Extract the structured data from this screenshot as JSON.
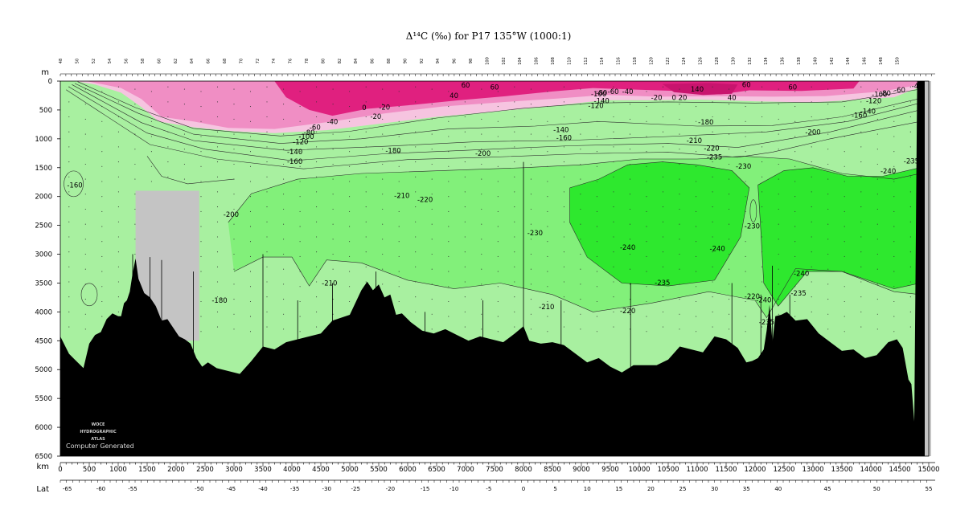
{
  "title": "Δ¹⁴C (‰) for P17 135°W (1000:1)",
  "chart_data": {
    "type": "heatmap",
    "title": "Δ¹⁴C (‰) for P17 135°W (1000:1)",
    "depth_axis": {
      "label": "m",
      "range": [
        0,
        6500
      ],
      "ticks": [
        "0",
        "500",
        "1000",
        "1500",
        "2000",
        "2500",
        "3000",
        "3500",
        "4000",
        "4500",
        "5000",
        "5500",
        "6000",
        "6500"
      ]
    },
    "distance_axis": {
      "label": "km",
      "range": [
        0,
        15000
      ],
      "ticks": [
        "0",
        "500",
        "1000",
        "1500",
        "2000",
        "2500",
        "3000",
        "3500",
        "4000",
        "4500",
        "5000",
        "5500",
        "6000",
        "6500",
        "7000",
        "7500",
        "8000",
        "8500",
        "9000",
        "9500",
        "10000",
        "10500",
        "11000",
        "11500",
        "12000",
        "12500",
        "13000",
        "13500",
        "14000",
        "14500",
        "15000"
      ]
    },
    "latitude_axis": {
      "label": "Lat",
      "ticks": [
        {
          "km": 120,
          "label": "-65"
        },
        {
          "km": 700,
          "label": "-60"
        },
        {
          "km": 1250,
          "label": "-55"
        },
        {
          "km": 2400,
          "label": "-50"
        },
        {
          "km": 2950,
          "label": "-45"
        },
        {
          "km": 3500,
          "label": "-40"
        },
        {
          "km": 4050,
          "label": "-35"
        },
        {
          "km": 4600,
          "label": "-30"
        },
        {
          "km": 5100,
          "label": "-25"
        },
        {
          "km": 5700,
          "label": "-20"
        },
        {
          "km": 6300,
          "label": "-15"
        },
        {
          "km": 6800,
          "label": "-10"
        },
        {
          "km": 7400,
          "label": "-5"
        },
        {
          "km": 8000,
          "label": "0"
        },
        {
          "km": 8550,
          "label": "5"
        },
        {
          "km": 9100,
          "label": "10"
        },
        {
          "km": 9650,
          "label": "15"
        },
        {
          "km": 10200,
          "label": "20"
        },
        {
          "km": 10750,
          "label": "25"
        },
        {
          "km": 11300,
          "label": "30"
        },
        {
          "km": 11850,
          "label": "35"
        },
        {
          "km": 12400,
          "label": "40"
        },
        {
          "km": 13250,
          "label": "45"
        },
        {
          "km": 14100,
          "label": "50"
        },
        {
          "km": 15000,
          "label": "55"
        }
      ]
    },
    "fill_levels": [
      {
        "min": 0,
        "color": "#e0207f"
      },
      {
        "min": -40,
        "color": "#f08ec4"
      },
      {
        "min": -120,
        "color": "#f6c4e0"
      },
      {
        "min": -180,
        "color": "#a8f0a0"
      },
      {
        "min": -220,
        "color": "#82f07a"
      },
      {
        "min": -235,
        "color": "#2ee82e"
      }
    ],
    "contour_labels": [
      {
        "km": 7000,
        "depth": 100,
        "value": "60"
      },
      {
        "km": 7500,
        "depth": 130,
        "value": "60"
      },
      {
        "km": 6800,
        "depth": 280,
        "value": "40"
      },
      {
        "km": 5250,
        "depth": 490,
        "value": "0"
      },
      {
        "km": 5600,
        "depth": 480,
        "value": "-20"
      },
      {
        "km": 5450,
        "depth": 640,
        "value": "-20"
      },
      {
        "km": 4700,
        "depth": 730,
        "value": "-40"
      },
      {
        "km": 4400,
        "depth": 830,
        "value": "-60"
      },
      {
        "km": 4300,
        "depth": 920,
        "value": "-80"
      },
      {
        "km": 4250,
        "depth": 990,
        "value": "-100"
      },
      {
        "km": 4150,
        "depth": 1080,
        "value": "-120"
      },
      {
        "km": 4050,
        "depth": 1250,
        "value": "-140"
      },
      {
        "km": 4050,
        "depth": 1420,
        "value": "-160"
      },
      {
        "km": 5750,
        "depth": 1230,
        "value": "-180"
      },
      {
        "km": 7300,
        "depth": 1280,
        "value": "-200"
      },
      {
        "km": 8700,
        "depth": 1010,
        "value": "-160"
      },
      {
        "km": 8650,
        "depth": 870,
        "value": "-140"
      },
      {
        "km": 9250,
        "depth": 450,
        "value": "-120"
      },
      {
        "km": 9350,
        "depth": 370,
        "value": "-140"
      },
      {
        "km": 9300,
        "depth": 250,
        "value": "-100"
      },
      {
        "km": 9350,
        "depth": 230,
        "value": "-80"
      },
      {
        "km": 9550,
        "depth": 210,
        "value": "-60"
      },
      {
        "km": 9800,
        "depth": 210,
        "value": "-40"
      },
      {
        "km": 10300,
        "depth": 310,
        "value": "-20"
      },
      {
        "km": 10600,
        "depth": 310,
        "value": "0"
      },
      {
        "km": 10750,
        "depth": 310,
        "value": "20"
      },
      {
        "km": 11000,
        "depth": 170,
        "value": "140"
      },
      {
        "km": 11600,
        "depth": 310,
        "value": "40"
      },
      {
        "km": 11850,
        "depth": 90,
        "value": "60"
      },
      {
        "km": 12650,
        "depth": 130,
        "value": "60"
      },
      {
        "km": 11150,
        "depth": 740,
        "value": "-180"
      },
      {
        "km": 10950,
        "depth": 1060,
        "value": "-210"
      },
      {
        "km": 11250,
        "depth": 1190,
        "value": "-220"
      },
      {
        "km": 11300,
        "depth": 1340,
        "value": "-235"
      },
      {
        "km": 11800,
        "depth": 1500,
        "value": "-230"
      },
      {
        "km": 13000,
        "depth": 910,
        "value": "-200"
      },
      {
        "km": 13950,
        "depth": 550,
        "value": "-140"
      },
      {
        "km": 13800,
        "depth": 620,
        "value": "-160"
      },
      {
        "km": 14050,
        "depth": 370,
        "value": "-120"
      },
      {
        "km": 14150,
        "depth": 260,
        "value": "-100"
      },
      {
        "km": 14250,
        "depth": 240,
        "value": "-80"
      },
      {
        "km": 14500,
        "depth": 180,
        "value": "-60"
      },
      {
        "km": 14800,
        "depth": 110,
        "value": "-40"
      },
      {
        "km": 14700,
        "depth": 1410,
        "value": "-235"
      },
      {
        "km": 14300,
        "depth": 1590,
        "value": "-240"
      },
      {
        "km": 250,
        "depth": 1830,
        "value": "-160"
      },
      {
        "km": 5900,
        "depth": 2010,
        "value": "-210"
      },
      {
        "km": 6300,
        "depth": 2080,
        "value": "-220"
      },
      {
        "km": 2950,
        "depth": 2340,
        "value": "-200"
      },
      {
        "km": 8200,
        "depth": 2660,
        "value": "-230"
      },
      {
        "km": 9800,
        "depth": 2910,
        "value": "-240"
      },
      {
        "km": 11350,
        "depth": 2930,
        "value": "-240"
      },
      {
        "km": 11950,
        "depth": 2540,
        "value": "-230"
      },
      {
        "km": 10400,
        "depth": 3520,
        "value": "-235"
      },
      {
        "km": 4650,
        "depth": 3530,
        "value": "-210"
      },
      {
        "km": 2750,
        "depth": 3830,
        "value": "-180"
      },
      {
        "km": 8400,
        "depth": 3940,
        "value": "-210"
      },
      {
        "km": 9800,
        "depth": 4010,
        "value": "-220"
      },
      {
        "km": 11950,
        "depth": 3760,
        "value": "-220"
      },
      {
        "km": 12150,
        "depth": 3820,
        "value": "-240"
      },
      {
        "km": 12800,
        "depth": 3360,
        "value": "-240"
      },
      {
        "km": 12750,
        "depth": 3700,
        "value": "-235"
      },
      {
        "km": 12200,
        "depth": 4200,
        "value": "-235"
      }
    ],
    "bottom_profile_km": [
      0,
      150,
      250,
      400,
      500,
      600,
      700,
      800,
      900,
      1000,
      1050,
      1100,
      1150,
      1200,
      1250,
      1300,
      1350,
      1450,
      1550,
      1650,
      1750,
      1850,
      1950,
      2050,
      2150,
      2250,
      2350,
      2450,
      2550,
      2700,
      2900,
      3100,
      3300,
      3500,
      3700,
      3900,
      4100,
      4300,
      4500,
      4700,
      4850,
      5000,
      5200,
      5300,
      5400,
      5500,
      5600,
      5700,
      5800,
      5900,
      6050,
      6250,
      6450,
      6650,
      6850,
      7050,
      7250,
      7450,
      7650,
      7850,
      8000,
      8100,
      8300,
      8500,
      8700,
      8900,
      9100,
      9300,
      9500,
      9700,
      9900,
      10100,
      10300,
      10500,
      10700,
      10900,
      11100,
      11300,
      11500,
      11700,
      11850,
      11950,
      12050,
      12150,
      12200,
      12250,
      12300,
      12350,
      12450,
      12550,
      12700,
      12900,
      13100,
      13300,
      13500,
      13700,
      13900,
      14100,
      14300,
      14450,
      14550,
      14650,
      14700,
      14750,
      14800,
      15000
    ],
    "bottom_profile_depth": [
      4500,
      4750,
      4800,
      4900,
      4600,
      4400,
      4300,
      4200,
      4050,
      4050,
      4000,
      3900,
      3800,
      3600,
      3400,
      3100,
      3400,
      3600,
      3800,
      3900,
      4100,
      4200,
      4300,
      4400,
      4400,
      4600,
      4800,
      4900,
      4950,
      5000,
      5000,
      5000,
      4900,
      4600,
      4600,
      4600,
      4500,
      4400,
      4300,
      4200,
      4100,
      4000,
      3700,
      3500,
      3600,
      3450,
      3800,
      3700,
      4000,
      4100,
      4200,
      4300,
      4300,
      4350,
      4400,
      4450,
      4500,
      4500,
      4500,
      4300,
      4300,
      4500,
      4500,
      4600,
      4600,
      4700,
      4800,
      4850,
      4950,
      5000,
      5000,
      4950,
      4900,
      4750,
      4650,
      4650,
      4650,
      4500,
      4500,
      4600,
      4800,
      4900,
      4800,
      4600,
      4400,
      3900,
      4500,
      4000,
      4100,
      4000,
      4100,
      4200,
      4400,
      4500,
      4600,
      4700,
      4800,
      4700,
      4600,
      4500,
      4600,
      5100,
      5300,
      5900,
      0,
      0
    ],
    "gap_region": {
      "km": [
        1300,
        2400
      ],
      "depth": [
        1900,
        4500
      ]
    }
  },
  "watermark": {
    "line1": "WOCE",
    "line2": "HYDROGRAPHIC",
    "line3": "ATLAS",
    "line4": "Computer Generated"
  },
  "station_labels": [
    "48",
    "50",
    "52",
    "54",
    "56",
    "58",
    "60",
    "62",
    "64",
    "66",
    "68",
    "70",
    "72",
    "74",
    "76",
    "78",
    "80",
    "82",
    "84",
    "86",
    "88",
    "90",
    "92",
    "94",
    "96",
    "98",
    "100",
    "102",
    "104",
    "106",
    "108",
    "110",
    "112",
    "114",
    "116",
    "118",
    "120",
    "122",
    "124",
    "126",
    "128",
    "130",
    "132",
    "134",
    "136",
    "138",
    "140",
    "142",
    "144",
    "146",
    "148",
    "150"
  ]
}
